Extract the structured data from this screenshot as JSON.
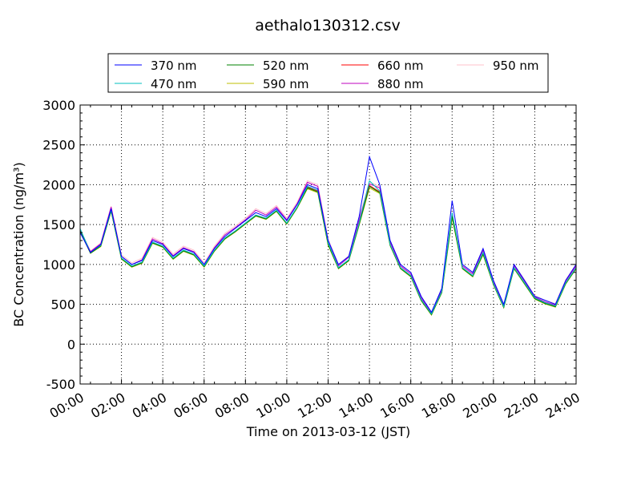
{
  "chart_data": {
    "type": "line",
    "title": "aethalo130312.csv",
    "xlabel": "Time on 2013-03-12 (JST)",
    "ylabel": "BC Concentration (ng/m³)",
    "xlim": [
      "2013-03-12 00:00",
      "2013-03-13 00:00"
    ],
    "ylim": [
      -500,
      3000
    ],
    "x_ticks": [
      "00:00",
      "02:00",
      "04:00",
      "06:00",
      "08:00",
      "10:00",
      "12:00",
      "14:00",
      "16:00",
      "18:00",
      "20:00",
      "22:00",
      "24:00"
    ],
    "y_ticks": [
      "-500",
      "0",
      "500",
      "1000",
      "1500",
      "2000",
      "2500",
      "3000"
    ],
    "grid": true,
    "legend_position": "top",
    "x": [
      "00:00",
      "00:30",
      "01:00",
      "01:30",
      "02:00",
      "02:30",
      "03:00",
      "03:30",
      "04:00",
      "04:30",
      "05:00",
      "05:30",
      "06:00",
      "06:30",
      "07:00",
      "07:30",
      "08:00",
      "08:30",
      "09:00",
      "09:30",
      "10:00",
      "10:30",
      "11:00",
      "11:30",
      "12:00",
      "12:30",
      "13:00",
      "13:30",
      "14:00",
      "14:30",
      "15:00",
      "15:30",
      "16:00",
      "16:30",
      "17:00",
      "17:30",
      "18:00",
      "18:30",
      "19:00",
      "19:30",
      "20:00",
      "20:30",
      "21:00",
      "21:30",
      "22:00",
      "22:30",
      "23:00",
      "23:30",
      "24:00"
    ],
    "series": [
      {
        "name": "370 nm",
        "color": "#0000ff",
        "values": [
          1400,
          1150,
          1250,
          1700,
          1100,
          1000,
          1050,
          1300,
          1250,
          1100,
          1200,
          1150,
          1000,
          1200,
          1350,
          1450,
          1550,
          1650,
          1600,
          1700,
          1550,
          1750,
          2000,
          1950,
          1300,
          1000,
          1100,
          1600,
          2350,
          2000,
          1300,
          1000,
          900,
          600,
          400,
          700,
          1800,
          1000,
          900,
          1200,
          800,
          500,
          1000,
          800,
          600,
          550,
          500,
          800,
          1000
        ]
      },
      {
        "name": "470 nm",
        "color": "#00bfbf",
        "values": [
          1450,
          1150,
          1240,
          1680,
          1080,
          980,
          1030,
          1280,
          1230,
          1080,
          1180,
          1130,
          980,
          1180,
          1330,
          1420,
          1520,
          1620,
          1580,
          1680,
          1520,
          1720,
          1980,
          1930,
          1270,
          960,
          1060,
          1520,
          2050,
          1920,
          1250,
          960,
          860,
          560,
          380,
          660,
          1650,
          960,
          860,
          1150,
          760,
          470,
          960,
          770,
          580,
          520,
          480,
          770,
          960
        ]
      },
      {
        "name": "520 nm",
        "color": "#008000",
        "values": [
          1420,
          1140,
          1230,
          1670,
          1070,
          970,
          1020,
          1270,
          1220,
          1070,
          1170,
          1120,
          970,
          1170,
          1320,
          1410,
          1510,
          1610,
          1570,
          1670,
          1510,
          1710,
          1960,
          1910,
          1250,
          950,
          1050,
          1500,
          1980,
          1900,
          1240,
          950,
          850,
          550,
          370,
          650,
          1600,
          950,
          850,
          1130,
          750,
          460,
          950,
          760,
          570,
          510,
          470,
          760,
          950
        ]
      },
      {
        "name": "590 nm",
        "color": "#bfbf00",
        "values": [
          1410,
          1140,
          1225,
          1665,
          1065,
          965,
          1015,
          1265,
          1215,
          1065,
          1165,
          1115,
          965,
          1165,
          1315,
          1405,
          1505,
          1605,
          1565,
          1665,
          1505,
          1705,
          1950,
          1900,
          1240,
          945,
          1045,
          1490,
          1960,
          1890,
          1235,
          945,
          845,
          545,
          365,
          645,
          1580,
          945,
          845,
          1120,
          745,
          455,
          945,
          755,
          565,
          505,
          465,
          755,
          945
        ]
      },
      {
        "name": "660 nm",
        "color": "#ff0000",
        "values": [
          1415,
          1145,
          1235,
          1675,
          1075,
          975,
          1025,
          1275,
          1225,
          1075,
          1175,
          1125,
          975,
          1175,
          1325,
          1415,
          1515,
          1615,
          1575,
          1675,
          1515,
          1715,
          1970,
          1920,
          1260,
          955,
          1055,
          1510,
          1990,
          1910,
          1245,
          955,
          855,
          555,
          375,
          655,
          1610,
          955,
          855,
          1135,
          755,
          465,
          955,
          765,
          575,
          515,
          475,
          765,
          955
        ]
      },
      {
        "name": "880 nm",
        "color": "#bf00bf",
        "values": [
          1430,
          1160,
          1260,
          1720,
          1100,
          1000,
          1060,
          1320,
          1260,
          1110,
          1210,
          1160,
          1000,
          1210,
          1370,
          1460,
          1560,
          1680,
          1620,
          1720,
          1560,
          1760,
          2030,
          1980,
          1300,
          980,
          1090,
          1560,
          2010,
          1960,
          1280,
          980,
          880,
          580,
          390,
          680,
          1630,
          980,
          880,
          1180,
          780,
          480,
          980,
          790,
          590,
          530,
          490,
          790,
          980
        ]
      },
      {
        "name": "950 nm",
        "color": "#ffc0cb",
        "values": [
          1440,
          1170,
          1270,
          1730,
          1120,
          1020,
          1080,
          1340,
          1280,
          1130,
          1230,
          1180,
          1020,
          1230,
          1390,
          1480,
          1580,
          1700,
          1640,
          1740,
          1580,
          1780,
          2050,
          2000,
          1320,
          1000,
          1110,
          1580,
          2030,
          1980,
          1300,
          1000,
          900,
          600,
          400,
          700,
          1650,
          1000,
          900,
          1200,
          800,
          500,
          1000,
          810,
          610,
          550,
          510,
          810,
          1000
        ]
      }
    ]
  }
}
